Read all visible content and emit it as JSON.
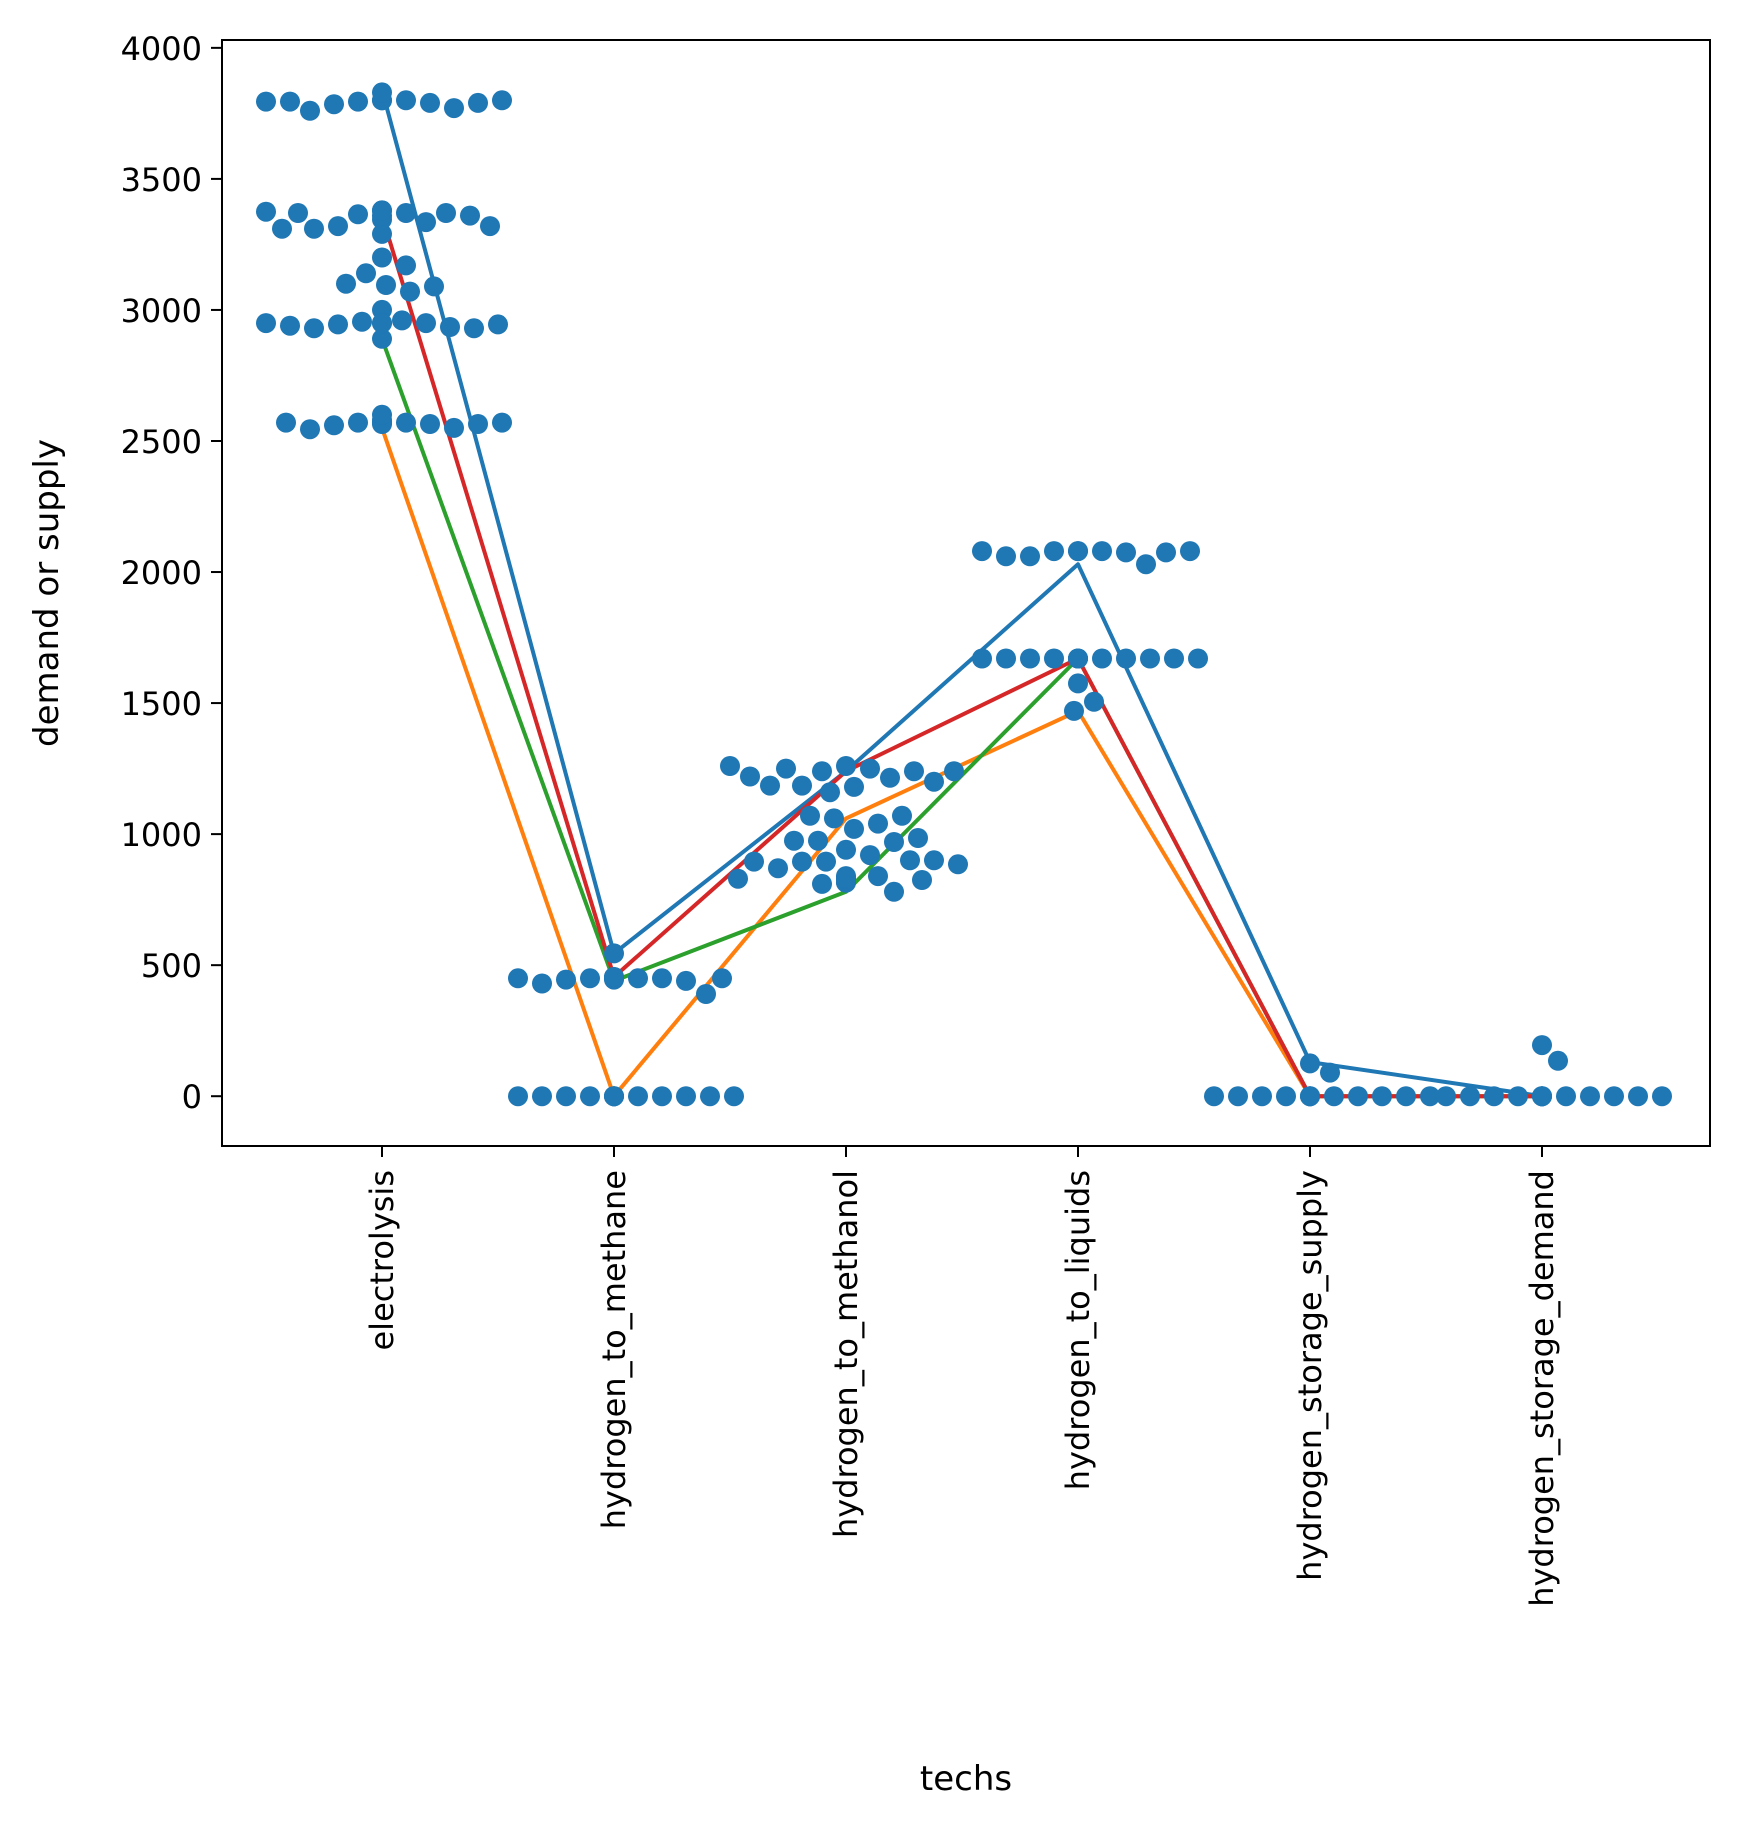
{
  "chart_data": {
    "type": "scatter",
    "title": "",
    "xlabel": "techs",
    "ylabel": "demand or supply",
    "ylim": [
      -190,
      4030
    ],
    "yticks": [
      0,
      500,
      1000,
      1500,
      2000,
      2500,
      3000,
      3500,
      4000
    ],
    "grid": false,
    "legend": "none",
    "categories": [
      "electrolysis",
      "hydrogen_to_methane",
      "hydrogen_to_methanol",
      "hydrogen_to_liquids",
      "hydrogen_storage_supply",
      "hydrogen_storage_demand"
    ],
    "points": [
      [
        3800,
        3800,
        3795,
        3790,
        3785,
        3770,
        3760,
        3790,
        3795,
        3795,
        3800,
        3800,
        3830,
        3380,
        3370,
        3365,
        3335,
        3320,
        3370,
        3310,
        3360,
        3290,
        3370,
        3310,
        3320,
        3345,
        3360,
        3375,
        3380,
        3200,
        3170,
        3140,
        3095,
        3070,
        3100,
        3090,
        3000,
        2960,
        2955,
        2950,
        2945,
        2935,
        2930,
        2890,
        2930,
        2940,
        2945,
        2950,
        2950,
        2950,
        2580,
        2570,
        2570,
        2565,
        2560,
        2550,
        2545,
        2565,
        2570,
        2570,
        2570,
        2565,
        2570,
        2600
      ],
      [
        455,
        450,
        450,
        450,
        445,
        440,
        430,
        390,
        545,
        450,
        450,
        450,
        445,
        450,
        455,
        0,
        0,
        0,
        0,
        0,
        0,
        0,
        0,
        0,
        0,
        0,
        0,
        0
      ],
      [
        1260,
        1250,
        1240,
        1215,
        1185,
        1250,
        1180,
        1160,
        1240,
        1185,
        1200,
        1220,
        1240,
        1260,
        940,
        920,
        895,
        895,
        1020,
        975,
        1040,
        970,
        1060,
        975,
        1070,
        985,
        1070,
        900,
        870,
        900,
        895,
        885,
        830,
        840,
        830,
        825,
        810,
        780,
        815,
        815,
        825,
        830,
        840,
        835
      ],
      [
        2080,
        2080,
        2080,
        2075,
        2060,
        2030,
        2060,
        2075,
        2080,
        2080,
        2080,
        1670,
        1670,
        1670,
        1670,
        1670,
        1670,
        1670,
        1670,
        1670,
        1670,
        1670,
        1670,
        1575,
        1505,
        1470
      ],
      [
        0,
        0,
        0,
        0,
        0,
        0,
        0,
        0,
        0,
        0,
        0,
        0,
        125,
        90
      ],
      [
        0,
        0,
        0,
        0,
        0,
        0,
        0,
        0,
        0,
        0,
        0,
        0,
        0,
        195,
        135
      ]
    ],
    "series": [
      {
        "color": "#1f77b4",
        "values": [
          3840,
          545,
          1240,
          2030,
          130,
          0
        ]
      },
      {
        "color": "#ff7f0e",
        "values": [
          2550,
          0,
          1060,
          1470,
          0,
          0
        ]
      },
      {
        "color": "#2ca02c",
        "values": [
          2890,
          440,
          780,
          1670,
          0,
          0
        ]
      },
      {
        "color": "#d62728",
        "values": [
          3360,
          455,
          1240,
          1670,
          0,
          0
        ]
      }
    ],
    "point_color": "#1f77b4"
  }
}
